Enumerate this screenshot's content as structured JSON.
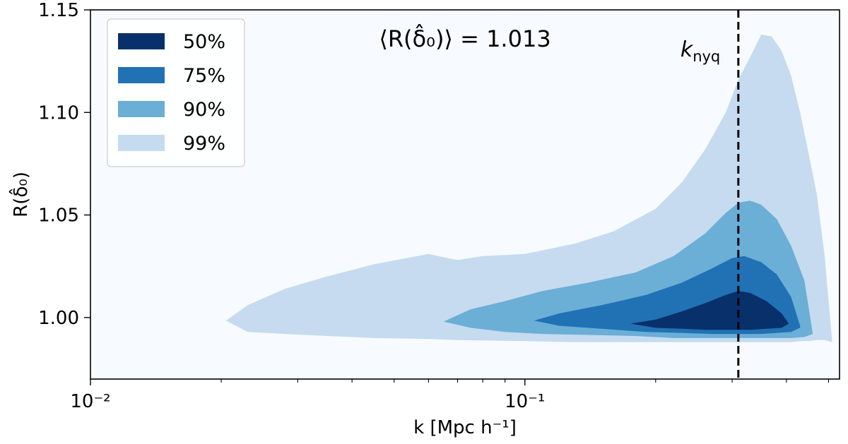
{
  "chart_data": {
    "type": "area",
    "xlabel": "k [Mpc h⁻¹]",
    "ylabel": "R(δ̂₀)",
    "x_scale": "log",
    "xlim": [
      0.01,
      0.53
    ],
    "ylim": [
      0.97,
      1.15
    ],
    "x_ticks": [
      {
        "value": 0.01,
        "label": "10⁻²"
      },
      {
        "value": 0.1,
        "label": "10⁻¹"
      }
    ],
    "y_ticks": [
      {
        "value": 1.0,
        "label": "1.00"
      },
      {
        "value": 1.05,
        "label": "1.05"
      },
      {
        "value": 1.1,
        "label": "1.10"
      },
      {
        "value": 1.15,
        "label": "1.15"
      }
    ],
    "annotation": "⟨R(δ̂₀)⟩ = 1.013",
    "vline": {
      "x": 0.31,
      "label": "k_nyq",
      "label_base": "k",
      "label_sub": "nyq"
    },
    "legend_position": "upper-left",
    "grid": false,
    "background": "#f7fbff",
    "series": [
      {
        "name": "99%",
        "color": "#c6dbef",
        "x": [
          0.0205,
          0.023,
          0.028,
          0.035,
          0.045,
          0.06,
          0.07,
          0.08,
          0.1,
          0.13,
          0.16,
          0.2,
          0.23,
          0.26,
          0.29,
          0.31,
          0.33,
          0.35,
          0.37,
          0.39,
          0.41,
          0.43,
          0.45,
          0.47,
          0.49,
          0.51
        ],
        "upper": [
          0.9985,
          1.006,
          1.014,
          1.02,
          1.026,
          1.031,
          1.028,
          1.03,
          1.031,
          1.036,
          1.042,
          1.053,
          1.066,
          1.082,
          1.1,
          1.116,
          1.127,
          1.138,
          1.137,
          1.13,
          1.118,
          1.1,
          1.08,
          1.06,
          1.03,
          0.988
        ],
        "lower": [
          0.9985,
          0.993,
          0.992,
          0.991,
          0.99,
          0.9895,
          0.989,
          0.9888,
          0.9885,
          0.988,
          0.988,
          0.988,
          0.988,
          0.988,
          0.988,
          0.988,
          0.988,
          0.988,
          0.988,
          0.988,
          0.988,
          0.9885,
          0.9885,
          0.989,
          0.989,
          0.988
        ]
      },
      {
        "name": "90%",
        "color": "#6baed6",
        "x": [
          0.065,
          0.075,
          0.09,
          0.11,
          0.14,
          0.18,
          0.22,
          0.26,
          0.29,
          0.31,
          0.33,
          0.35,
          0.38,
          0.41,
          0.44,
          0.46
        ],
        "upper": [
          0.998,
          1.004,
          1.008,
          1.013,
          1.017,
          1.022,
          1.03,
          1.041,
          1.051,
          1.056,
          1.057,
          1.055,
          1.048,
          1.035,
          1.018,
          0.992
        ],
        "lower": [
          0.998,
          0.995,
          0.993,
          0.992,
          0.9915,
          0.991,
          0.99,
          0.99,
          0.99,
          0.99,
          0.99,
          0.99,
          0.99,
          0.99,
          0.9905,
          0.992
        ]
      },
      {
        "name": "75%",
        "color": "#2171b5",
        "x": [
          0.105,
          0.12,
          0.15,
          0.19,
          0.23,
          0.27,
          0.3,
          0.32,
          0.35,
          0.38,
          0.41,
          0.43
        ],
        "upper": [
          0.9985,
          1.002,
          1.006,
          1.011,
          1.017,
          1.024,
          1.029,
          1.03,
          1.027,
          1.021,
          1.01,
          0.996
        ],
        "lower": [
          0.9985,
          0.996,
          0.9945,
          0.993,
          0.9925,
          0.992,
          0.992,
          0.992,
          0.992,
          0.9925,
          0.993,
          0.995
        ]
      },
      {
        "name": "50%",
        "color": "#08306b",
        "x": [
          0.175,
          0.2,
          0.23,
          0.26,
          0.29,
          0.31,
          0.33,
          0.36,
          0.39,
          0.405
        ],
        "upper": [
          0.997,
          0.999,
          1.003,
          1.007,
          1.011,
          1.013,
          1.012,
          1.008,
          1.002,
          0.997
        ],
        "lower": [
          0.997,
          0.995,
          0.9945,
          0.994,
          0.994,
          0.994,
          0.994,
          0.9945,
          0.995,
          0.997
        ]
      }
    ],
    "legend_order": [
      "50%",
      "75%",
      "90%",
      "99%"
    ]
  }
}
